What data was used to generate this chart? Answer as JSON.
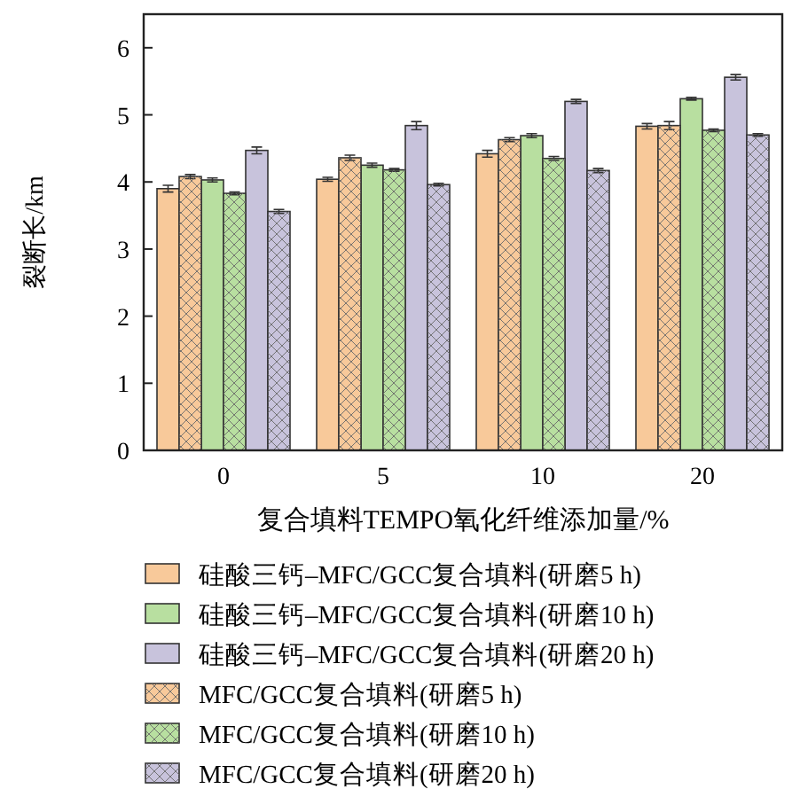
{
  "chart_data": {
    "type": "bar",
    "xlabel": "复合填料TEMPO氧化纤维添加量/%",
    "ylabel": "裂断长/km",
    "categories": [
      "0",
      "5",
      "10",
      "20"
    ],
    "ylim": [
      0,
      6.5
    ],
    "yticks": [
      0,
      1,
      2,
      3,
      4,
      5,
      6
    ],
    "grid": false,
    "legend": "bottom",
    "series": [
      {
        "name": "硅酸三钙–MFC/GCC复合填料(研磨5 h)",
        "color": "#f8c99a",
        "values": [
          3.9,
          4.04,
          4.42,
          4.83
        ],
        "errors": [
          0.05,
          0.03,
          0.05,
          0.04
        ]
      },
      {
        "name": "硅酸三钙–MFC/GCC复合填料(研磨10 h)",
        "color": "#b8dfa0",
        "values": [
          4.03,
          4.25,
          4.69,
          5.24
        ],
        "errors": [
          0.03,
          0.03,
          0.03,
          0.02
        ]
      },
      {
        "name": "硅酸三钙–MFC/GCC复合填料(研磨20 h)",
        "color": "#c8c3dc",
        "values": [
          4.47,
          4.84,
          5.2,
          5.56
        ],
        "errors": [
          0.05,
          0.06,
          0.03,
          0.04
        ]
      },
      {
        "name": "MFC/GCC复合填料(研磨5 h)",
        "color": "#f8c99a",
        "values": [
          4.08,
          4.36,
          4.63,
          4.84
        ],
        "errors": [
          0.03,
          0.04,
          0.03,
          0.06
        ]
      },
      {
        "name": "MFC/GCC复合填料(研磨10 h)",
        "color": "#b8dfa0",
        "values": [
          3.83,
          4.18,
          4.35,
          4.77
        ],
        "errors": [
          0.02,
          0.02,
          0.03,
          0.02
        ]
      },
      {
        "name": "MFC/GCC复合填料(研磨20 h)",
        "color": "#c8c3dc",
        "values": [
          3.56,
          3.96,
          4.17,
          4.7
        ],
        "errors": [
          0.03,
          0.02,
          0.03,
          0.02
        ]
      }
    ]
  }
}
